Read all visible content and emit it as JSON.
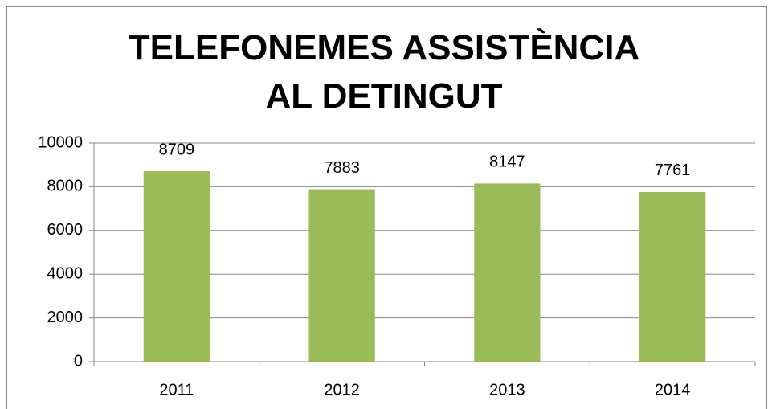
{
  "chart_data": {
    "type": "bar",
    "title": "TELEFONEMES ASSISTÈNCIA AL DETINGUT",
    "categories": [
      "2011",
      "2012",
      "2013",
      "2014"
    ],
    "values": [
      8709,
      7883,
      8147,
      7761
    ],
    "color": "#9bbb59",
    "ylim": [
      0,
      10000
    ],
    "yticks": [
      0,
      2000,
      4000,
      6000,
      8000,
      10000
    ],
    "grid": true
  }
}
